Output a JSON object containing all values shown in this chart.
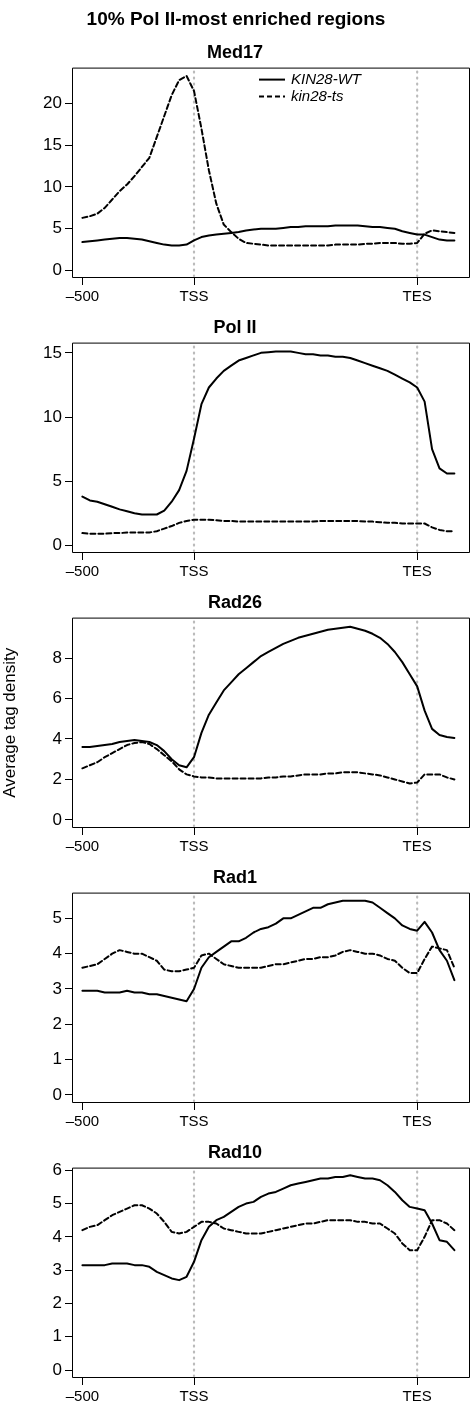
{
  "chart_data": [
    {
      "type": "line",
      "title": "10% Pol II-most enriched regions",
      "subtitle": "Med17",
      "legend": "top",
      "categories": [
        "–500",
        null,
        null,
        null,
        null,
        null,
        null,
        null,
        null,
        null,
        null,
        null,
        null,
        null,
        null,
        "TSS",
        null,
        null,
        null,
        null,
        null,
        null,
        null,
        null,
        null,
        null,
        null,
        null,
        null,
        null,
        null,
        null,
        null,
        null,
        null,
        null,
        null,
        null,
        null,
        null,
        null,
        null,
        null,
        null,
        null,
        "TES",
        null,
        null,
        null,
        null,
        null
      ],
      "ylim": [
        -0.9,
        24.3
      ],
      "yticks": [
        0,
        5,
        10,
        15,
        20
      ],
      "grid": false,
      "marker": "none",
      "ref_lines": [
        {
          "axis": "x",
          "value": "TSS",
          "color": "#bbbbbb",
          "line_style": "dotted"
        },
        {
          "axis": "x",
          "value": "TES",
          "color": "#bbbbbb",
          "line_style": "dotted"
        }
      ],
      "series": [
        {
          "name": "KIN28-WT",
          "color": "#000000",
          "line_style": "solid",
          "values": [
            3.4,
            3.5,
            3.6,
            3.7,
            3.8,
            3.9,
            3.9,
            3.8,
            3.7,
            3.5,
            3.3,
            3.1,
            3.0,
            3.0,
            3.1,
            3.6,
            4.0,
            4.2,
            4.3,
            4.4,
            4.5,
            4.6,
            4.8,
            4.9,
            5.0,
            5.0,
            5.0,
            5.1,
            5.2,
            5.2,
            5.3,
            5.3,
            5.3,
            5.3,
            5.4,
            5.4,
            5.4,
            5.4,
            5.3,
            5.2,
            5.2,
            5.1,
            5.0,
            4.7,
            4.5,
            4.3,
            4.3,
            4.0,
            3.7,
            3.6,
            3.6
          ]
        },
        {
          "name": "kin28-ts",
          "color": "#000000",
          "line_style": "dashed",
          "values": [
            6.3,
            6.5,
            6.8,
            7.5,
            8.5,
            9.5,
            10.3,
            11.3,
            12.4,
            13.5,
            16.0,
            18.5,
            21.0,
            22.8,
            23.3,
            21.5,
            17.0,
            12.0,
            8.0,
            5.5,
            4.6,
            3.8,
            3.3,
            3.2,
            3.1,
            3.0,
            3.0,
            3.0,
            3.0,
            3.0,
            3.0,
            3.0,
            3.0,
            3.0,
            3.1,
            3.1,
            3.1,
            3.1,
            3.2,
            3.2,
            3.3,
            3.3,
            3.3,
            3.2,
            3.2,
            3.3,
            4.4,
            4.8,
            4.7,
            4.6,
            4.5
          ]
        }
      ]
    },
    {
      "type": "line",
      "title": "Pol II",
      "categories": [
        "–500",
        null,
        null,
        null,
        null,
        null,
        null,
        null,
        null,
        null,
        null,
        null,
        null,
        null,
        null,
        "TSS",
        null,
        null,
        null,
        null,
        null,
        null,
        null,
        null,
        null,
        null,
        null,
        null,
        null,
        null,
        null,
        null,
        null,
        null,
        null,
        null,
        null,
        null,
        null,
        null,
        null,
        null,
        null,
        null,
        null,
        "TES",
        null,
        null,
        null,
        null,
        null
      ],
      "ylim": [
        -0.6,
        15.8
      ],
      "yticks": [
        0,
        5,
        10,
        15
      ],
      "grid": false,
      "marker": "none",
      "ref_lines": [
        {
          "axis": "x",
          "value": "TSS",
          "color": "#bbbbbb",
          "line_style": "dotted"
        },
        {
          "axis": "x",
          "value": "TES",
          "color": "#bbbbbb",
          "line_style": "dotted"
        }
      ],
      "series": [
        {
          "color": "#000000",
          "line_style": "solid",
          "values": [
            3.8,
            3.5,
            3.4,
            3.2,
            3.0,
            2.8,
            2.65,
            2.5,
            2.4,
            2.4,
            2.4,
            2.7,
            3.4,
            4.3,
            5.8,
            8.3,
            11.0,
            12.3,
            13.0,
            13.6,
            14.0,
            14.4,
            14.6,
            14.8,
            15.0,
            15.05,
            15.1,
            15.1,
            15.1,
            15.0,
            14.9,
            14.9,
            14.8,
            14.8,
            14.7,
            14.7,
            14.6,
            14.4,
            14.2,
            14.0,
            13.8,
            13.6,
            13.3,
            13.0,
            12.7,
            12.3,
            11.2,
            7.5,
            6.0,
            5.6,
            5.6
          ]
        },
        {
          "color": "#000000",
          "line_style": "dashed",
          "values": [
            0.95,
            0.9,
            0.9,
            0.9,
            0.95,
            0.95,
            1.0,
            1.0,
            1.0,
            1.0,
            1.1,
            1.3,
            1.5,
            1.75,
            1.9,
            2.0,
            2.0,
            2.0,
            1.95,
            1.9,
            1.9,
            1.85,
            1.85,
            1.85,
            1.85,
            1.85,
            1.85,
            1.85,
            1.85,
            1.85,
            1.85,
            1.85,
            1.9,
            1.9,
            1.9,
            1.9,
            1.9,
            1.9,
            1.85,
            1.85,
            1.8,
            1.75,
            1.75,
            1.7,
            1.7,
            1.7,
            1.7,
            1.4,
            1.2,
            1.1,
            1.1
          ]
        }
      ]
    },
    {
      "type": "line",
      "title": "Rad26",
      "ylabel": "Average tag density",
      "categories": [
        "–500",
        null,
        null,
        null,
        null,
        null,
        null,
        null,
        null,
        null,
        null,
        null,
        null,
        null,
        null,
        "TSS",
        null,
        null,
        null,
        null,
        null,
        null,
        null,
        null,
        null,
        null,
        null,
        null,
        null,
        null,
        null,
        null,
        null,
        null,
        null,
        null,
        null,
        null,
        null,
        null,
        null,
        null,
        null,
        null,
        null,
        "TES",
        null,
        null,
        null,
        null,
        null
      ],
      "ylim": [
        -0.4,
        10
      ],
      "yticks": [
        0,
        2,
        4,
        6,
        8
      ],
      "grid": false,
      "marker": "none",
      "ref_lines": [
        {
          "axis": "x",
          "value": "TSS",
          "color": "#bbbbbb",
          "line_style": "dotted"
        },
        {
          "axis": "x",
          "value": "TES",
          "color": "#bbbbbb",
          "line_style": "dotted"
        }
      ],
      "series": [
        {
          "color": "#000000",
          "line_style": "solid",
          "values": [
            3.6,
            3.6,
            3.65,
            3.7,
            3.75,
            3.85,
            3.9,
            3.95,
            3.9,
            3.85,
            3.7,
            3.4,
            3.0,
            2.7,
            2.6,
            3.1,
            4.3,
            5.2,
            5.8,
            6.4,
            6.8,
            7.2,
            7.5,
            7.8,
            8.1,
            8.3,
            8.5,
            8.7,
            8.85,
            9.0,
            9.1,
            9.2,
            9.3,
            9.4,
            9.45,
            9.5,
            9.55,
            9.45,
            9.35,
            9.2,
            9.0,
            8.7,
            8.3,
            7.8,
            7.2,
            6.6,
            5.4,
            4.5,
            4.2,
            4.1,
            4.05
          ]
        },
        {
          "color": "#000000",
          "line_style": "dashed",
          "values": [
            2.55,
            2.7,
            2.85,
            3.1,
            3.3,
            3.5,
            3.7,
            3.8,
            3.85,
            3.75,
            3.5,
            3.2,
            2.9,
            2.5,
            2.25,
            2.15,
            2.1,
            2.1,
            2.05,
            2.05,
            2.05,
            2.05,
            2.05,
            2.05,
            2.05,
            2.1,
            2.1,
            2.15,
            2.15,
            2.2,
            2.25,
            2.25,
            2.25,
            2.3,
            2.3,
            2.35,
            2.35,
            2.35,
            2.3,
            2.25,
            2.2,
            2.1,
            2.0,
            1.9,
            1.8,
            1.85,
            2.25,
            2.25,
            2.25,
            2.1,
            2.0
          ]
        }
      ]
    },
    {
      "type": "line",
      "title": "Rad1",
      "categories": [
        "–500",
        null,
        null,
        null,
        null,
        null,
        null,
        null,
        null,
        null,
        null,
        null,
        null,
        null,
        null,
        "TSS",
        null,
        null,
        null,
        null,
        null,
        null,
        null,
        null,
        null,
        null,
        null,
        null,
        null,
        null,
        null,
        null,
        null,
        null,
        null,
        null,
        null,
        null,
        null,
        null,
        null,
        null,
        null,
        null,
        null,
        "TES",
        null,
        null,
        null,
        null,
        null
      ],
      "ylim": [
        -0.23,
        5.73
      ],
      "yticks": [
        0,
        1,
        2,
        3,
        4,
        5
      ],
      "grid": false,
      "marker": "none",
      "ref_lines": [
        {
          "axis": "x",
          "value": "TSS",
          "color": "#bbbbbb",
          "line_style": "dotted"
        },
        {
          "axis": "x",
          "value": "TES",
          "color": "#bbbbbb",
          "line_style": "dotted"
        }
      ],
      "series": [
        {
          "color": "#000000",
          "line_style": "solid",
          "values": [
            2.95,
            2.95,
            2.95,
            2.9,
            2.9,
            2.9,
            2.95,
            2.9,
            2.9,
            2.85,
            2.85,
            2.8,
            2.75,
            2.7,
            2.65,
            3.0,
            3.6,
            3.9,
            4.05,
            4.2,
            4.35,
            4.35,
            4.45,
            4.6,
            4.7,
            4.75,
            4.85,
            5.0,
            5.0,
            5.1,
            5.2,
            5.3,
            5.3,
            5.4,
            5.45,
            5.5,
            5.5,
            5.5,
            5.5,
            5.45,
            5.3,
            5.15,
            5.0,
            4.8,
            4.7,
            4.65,
            4.9,
            4.6,
            4.1,
            3.8,
            3.25
          ]
        },
        {
          "color": "#000000",
          "line_style": "dashed",
          "values": [
            3.6,
            3.65,
            3.7,
            3.85,
            4.0,
            4.1,
            4.05,
            4.0,
            4.0,
            3.9,
            3.8,
            3.55,
            3.5,
            3.5,
            3.55,
            3.6,
            3.95,
            4.0,
            3.85,
            3.7,
            3.65,
            3.6,
            3.6,
            3.6,
            3.6,
            3.65,
            3.7,
            3.7,
            3.75,
            3.8,
            3.85,
            3.85,
            3.9,
            3.9,
            3.95,
            4.05,
            4.1,
            4.05,
            4.0,
            4.0,
            3.95,
            3.85,
            3.8,
            3.6,
            3.45,
            3.45,
            3.85,
            4.2,
            4.15,
            4.1,
            3.6
          ]
        }
      ]
    },
    {
      "type": "line",
      "title": "Rad10",
      "categories": [
        "–500",
        null,
        null,
        null,
        null,
        null,
        null,
        null,
        null,
        null,
        null,
        null,
        null,
        null,
        null,
        "TSS",
        null,
        null,
        null,
        null,
        null,
        null,
        null,
        null,
        null,
        null,
        null,
        null,
        null,
        null,
        null,
        null,
        null,
        null,
        null,
        null,
        null,
        null,
        null,
        null,
        null,
        null,
        null,
        null,
        null,
        "TES",
        null,
        null,
        null,
        null,
        null
      ],
      "ylim": [
        -0.24,
        6.08
      ],
      "yticks": [
        0,
        1,
        2,
        3,
        4,
        5,
        6
      ],
      "grid": false,
      "marker": "none",
      "ref_lines": [
        {
          "axis": "x",
          "value": "TSS",
          "color": "#bbbbbb",
          "line_style": "dotted"
        },
        {
          "axis": "x",
          "value": "TES",
          "color": "#bbbbbb",
          "line_style": "dotted"
        }
      ],
      "series": [
        {
          "color": "#000000",
          "line_style": "solid",
          "values": [
            3.15,
            3.15,
            3.15,
            3.15,
            3.2,
            3.2,
            3.2,
            3.15,
            3.15,
            3.1,
            2.95,
            2.85,
            2.75,
            2.7,
            2.8,
            3.25,
            3.9,
            4.3,
            4.5,
            4.6,
            4.75,
            4.9,
            5.0,
            5.05,
            5.2,
            5.3,
            5.35,
            5.45,
            5.55,
            5.6,
            5.65,
            5.7,
            5.75,
            5.75,
            5.8,
            5.8,
            5.85,
            5.8,
            5.75,
            5.75,
            5.7,
            5.55,
            5.35,
            5.1,
            4.9,
            4.85,
            4.8,
            4.4,
            3.9,
            3.85,
            3.6
          ]
        },
        {
          "color": "#000000",
          "line_style": "dashed",
          "values": [
            4.2,
            4.3,
            4.35,
            4.5,
            4.65,
            4.75,
            4.85,
            4.95,
            4.95,
            4.85,
            4.7,
            4.45,
            4.15,
            4.1,
            4.15,
            4.3,
            4.45,
            4.45,
            4.4,
            4.25,
            4.2,
            4.15,
            4.1,
            4.1,
            4.1,
            4.15,
            4.2,
            4.25,
            4.3,
            4.35,
            4.4,
            4.4,
            4.45,
            4.5,
            4.5,
            4.5,
            4.5,
            4.45,
            4.45,
            4.4,
            4.4,
            4.25,
            4.1,
            3.8,
            3.6,
            3.6,
            4.0,
            4.5,
            4.5,
            4.4,
            4.2
          ]
        }
      ]
    }
  ]
}
